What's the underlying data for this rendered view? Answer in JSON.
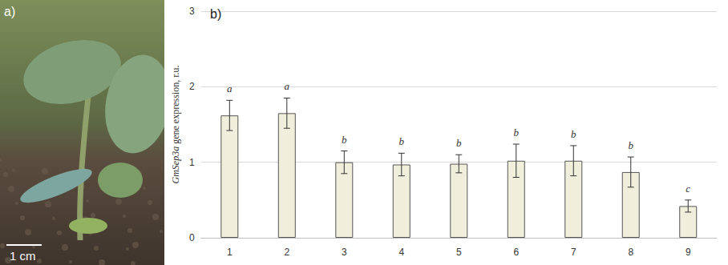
{
  "photo_panel": {
    "label": "a)",
    "scale_bar": "1 cm"
  },
  "chart_data": {
    "type": "bar",
    "panel_label": "b)",
    "y_label": "GmSep3a gene expression, r.u.",
    "categories": [
      "1",
      "2",
      "3",
      "4",
      "5",
      "6",
      "7",
      "8",
      "9"
    ],
    "values": [
      1.62,
      1.65,
      1.0,
      0.97,
      0.98,
      1.02,
      1.02,
      0.87,
      0.42
    ],
    "errors": [
      0.2,
      0.2,
      0.15,
      0.15,
      0.12,
      0.22,
      0.2,
      0.2,
      0.08
    ],
    "significance": [
      "a",
      "a",
      "b",
      "b",
      "b",
      "b",
      "b",
      "b",
      "c"
    ],
    "color": "#efefdc",
    "ylim": [
      0,
      3
    ],
    "yticks": [
      0,
      1,
      2,
      3
    ],
    "grid": true
  }
}
